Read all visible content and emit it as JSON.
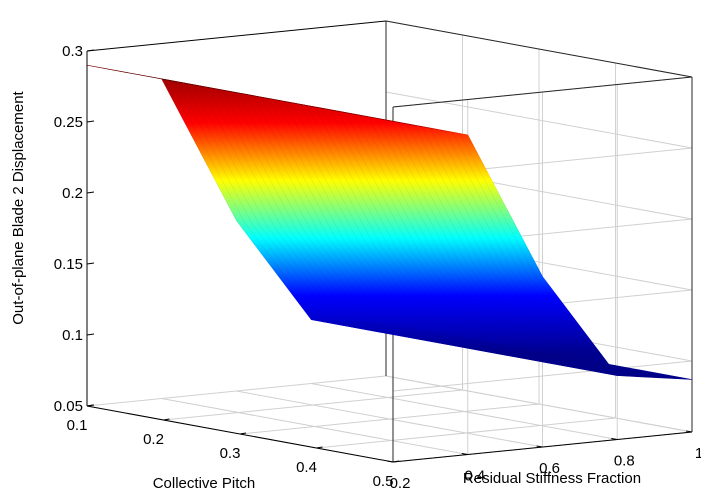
{
  "chart_data": {
    "type": "surface",
    "title": "",
    "xlabel": "Collective Pitch",
    "ylabel": "Residual Stiffness Fraction",
    "zlabel": "Out-of-plane Blade 2 Displacement",
    "xlim": [
      0.1,
      0.5
    ],
    "ylim": [
      0.2,
      1
    ],
    "zlim": [
      0.05,
      0.3
    ],
    "x_ticks": [
      "0.1",
      "0.2",
      "0.3",
      "0.4",
      "0.5"
    ],
    "y_ticks": [
      "0.2",
      "0.4",
      "0.6",
      "0.8",
      "1"
    ],
    "z_ticks": [
      "0.05",
      "0.1",
      "0.15",
      "0.2",
      "0.25",
      "0.3"
    ],
    "grid": true,
    "colormap": "jet",
    "colormap_stops": [
      "#00008f",
      "#0000ff",
      "#00ffff",
      "#ffff00",
      "#ff0000",
      "#800000"
    ],
    "surface": {
      "x": [
        0.1,
        0.2,
        0.3,
        0.4,
        0.5
      ],
      "y": [
        0.2,
        0.4,
        0.6,
        0.8,
        1.0
      ],
      "z": [
        [
          0.29,
          0.29,
          0.29,
          0.29,
          0.29
        ],
        [
          0.275,
          0.275,
          0.275,
          0.275,
          0.275
        ],
        [
          0.17,
          0.17,
          0.17,
          0.17,
          0.17
        ],
        [
          0.095,
          0.095,
          0.095,
          0.095,
          0.095
        ],
        [
          0.087,
          0.087,
          0.087,
          0.087,
          0.087
        ]
      ]
    }
  }
}
